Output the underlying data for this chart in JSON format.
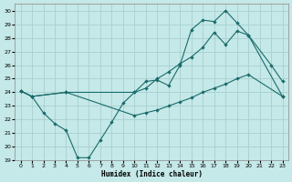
{
  "xlabel": "Humidex (Indice chaleur)",
  "bg_color": "#c5e8e8",
  "grid_color": "#a8d0d0",
  "line_color": "#1a6b6b",
  "xlim": [
    -0.5,
    23.5
  ],
  "ylim": [
    19,
    30.5
  ],
  "xticks": [
    0,
    1,
    2,
    3,
    4,
    5,
    6,
    7,
    8,
    9,
    10,
    11,
    12,
    13,
    14,
    15,
    16,
    17,
    18,
    19,
    20,
    21,
    22,
    23
  ],
  "yticks": [
    19,
    20,
    21,
    22,
    23,
    24,
    25,
    26,
    27,
    28,
    29,
    30
  ],
  "line1_x": [
    0,
    1,
    2,
    3,
    4,
    5,
    6,
    7,
    8,
    9,
    10,
    11,
    12,
    13,
    14,
    15,
    16,
    17,
    18,
    19,
    20,
    22,
    23
  ],
  "line1_y": [
    24.1,
    23.7,
    22.5,
    21.7,
    21.2,
    19.2,
    19.2,
    20.5,
    21.8,
    23.2,
    24.0,
    24.8,
    24.9,
    24.5,
    26.0,
    28.6,
    29.3,
    29.2,
    30.0,
    29.1,
    28.2,
    26.0,
    24.8
  ],
  "line2_x": [
    0,
    1,
    4,
    10,
    11,
    12,
    13,
    14,
    15,
    16,
    17,
    18,
    19,
    20,
    23
  ],
  "line2_y": [
    24.1,
    23.7,
    24.0,
    24.0,
    24.3,
    25.0,
    25.5,
    26.1,
    26.6,
    27.3,
    28.4,
    27.5,
    28.5,
    28.2,
    23.7
  ],
  "line3_x": [
    0,
    1,
    4,
    10,
    11,
    12,
    13,
    14,
    15,
    16,
    17,
    18,
    19,
    20,
    23
  ],
  "line3_y": [
    24.1,
    23.7,
    24.0,
    22.3,
    22.5,
    22.7,
    23.0,
    23.3,
    23.6,
    24.0,
    24.3,
    24.6,
    25.0,
    25.3,
    23.7
  ]
}
